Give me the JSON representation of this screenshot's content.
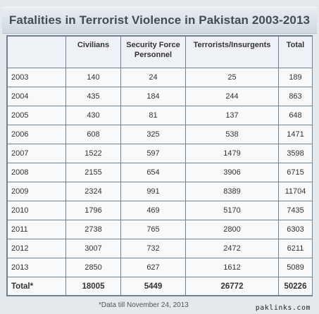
{
  "title": "Fatalities in Terrorist Violence in Pakistan 2003-2013",
  "columns": [
    "",
    "Civilians",
    "Security Force Personnel",
    "Terrorists/Insurgents",
    "Total"
  ],
  "rows": [
    [
      "2003",
      "140",
      "24",
      "25",
      "189"
    ],
    [
      "2004",
      "435",
      "184",
      "244",
      "863"
    ],
    [
      "2005",
      "430",
      "81",
      "137",
      "648"
    ],
    [
      "2006",
      "608",
      "325",
      "538",
      "1471"
    ],
    [
      "2007",
      "1522",
      "597",
      "1479",
      "3598"
    ],
    [
      "2008",
      "2155",
      "654",
      "3906",
      "6715"
    ],
    [
      "2009",
      "2324",
      "991",
      "8389",
      "11704"
    ],
    [
      "2010",
      "1796",
      "469",
      "5170",
      "7435"
    ],
    [
      "2011",
      "2738",
      "765",
      "2800",
      "6303"
    ],
    [
      "2012",
      "3007",
      "732",
      "2472",
      "6211"
    ],
    [
      "2013",
      "2850",
      "627",
      "1612",
      "5089"
    ]
  ],
  "total_row": [
    "Total*",
    "18005",
    "5449",
    "26772",
    "50226"
  ],
  "footnote": "*Data till November 24, 2013",
  "watermark": "paklinks.com"
}
